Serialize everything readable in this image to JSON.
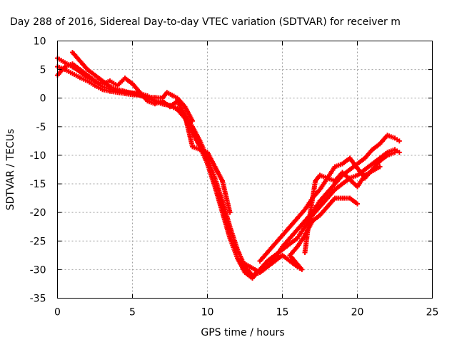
{
  "chart_data": {
    "type": "scatter",
    "title": "Day 288 of 2016, Sidereal Day-to-day VTEC variation (SDTVAR) for receiver m",
    "xlabel": "GPS time / hours",
    "ylabel": "SDTVAR / TECUs",
    "xlim": [
      0,
      25
    ],
    "ylim": [
      -35,
      10
    ],
    "xticks": [
      "0",
      "5",
      "10",
      "15",
      "20",
      "25"
    ],
    "yticks": [
      "10",
      "5",
      "0",
      "-5",
      "-10",
      "-15",
      "-20",
      "-25",
      "-30",
      "-35"
    ],
    "grid": true,
    "series_color": "#ff0000",
    "series": [
      {
        "points": [
          [
            0.0,
            7.0
          ],
          [
            0.5,
            6.2
          ],
          [
            1.0,
            5.5
          ],
          [
            1.5,
            4.6
          ],
          [
            2.0,
            3.6
          ],
          [
            2.5,
            2.8
          ],
          [
            3.0,
            2.0
          ],
          [
            3.5,
            1.6
          ],
          [
            4.0,
            1.2
          ],
          [
            4.5,
            1.0
          ],
          [
            5.0,
            0.9
          ],
          [
            5.5,
            0.8
          ],
          [
            6.0,
            0.4
          ],
          [
            6.5,
            -0.4
          ],
          [
            7.0,
            -1.0
          ],
          [
            7.5,
            -1.3
          ],
          [
            8.0,
            -1.8
          ],
          [
            8.5,
            -3.0
          ],
          [
            9.0,
            -5.0
          ],
          [
            9.5,
            -7.5
          ],
          [
            10.0,
            -10.5
          ],
          [
            10.5,
            -14.0
          ],
          [
            11.0,
            -18.0
          ],
          [
            11.5,
            -22.5
          ],
          [
            12.0,
            -26.5
          ],
          [
            12.5,
            -29.5
          ],
          [
            13.0,
            -31.0
          ],
          [
            13.5,
            -30.5
          ],
          [
            14.0,
            -29.5
          ],
          [
            14.5,
            -28.0
          ],
          [
            15.0,
            -26.0
          ],
          [
            15.5,
            -24.5
          ],
          [
            16.0,
            -23.0
          ],
          [
            16.5,
            -21.5
          ],
          [
            17.0,
            -20.0
          ],
          [
            17.5,
            -18.0
          ],
          [
            18.0,
            -16.5
          ],
          [
            18.5,
            -15.0
          ],
          [
            19.0,
            -13.5
          ],
          [
            19.5,
            -12.5
          ],
          [
            20.0,
            -11.5
          ],
          [
            20.5,
            -10.5
          ],
          [
            21.0,
            -9.0
          ],
          [
            21.5,
            -8.0
          ],
          [
            22.0,
            -6.5
          ],
          [
            22.5,
            -7.0
          ],
          [
            22.8,
            -7.5
          ]
        ]
      },
      {
        "points": [
          [
            0.0,
            5.5
          ],
          [
            0.5,
            5.0
          ],
          [
            1.0,
            4.3
          ],
          [
            1.5,
            3.6
          ],
          [
            2.0,
            3.0
          ],
          [
            2.5,
            2.2
          ],
          [
            3.0,
            1.5
          ],
          [
            3.5,
            1.2
          ],
          [
            4.0,
            1.0
          ],
          [
            4.5,
            0.8
          ],
          [
            5.0,
            0.6
          ],
          [
            5.5,
            0.5
          ],
          [
            6.0,
            0.0
          ],
          [
            6.5,
            -0.6
          ],
          [
            7.0,
            -1.0
          ],
          [
            7.5,
            -1.3
          ],
          [
            8.0,
            -2.0
          ],
          [
            8.5,
            -3.5
          ],
          [
            9.0,
            -6.0
          ],
          [
            9.5,
            -8.5
          ],
          [
            10.0,
            -11.5
          ],
          [
            10.5,
            -15.5
          ],
          [
            11.0,
            -20.0
          ],
          [
            11.5,
            -24.5
          ],
          [
            12.0,
            -28.0
          ],
          [
            12.5,
            -30.5
          ],
          [
            13.0,
            -31.5
          ],
          [
            13.5,
            -30.0
          ],
          [
            14.0,
            -28.5
          ],
          [
            14.5,
            -27.5
          ],
          [
            15.0,
            -26.5
          ],
          [
            15.5,
            -25.5
          ],
          [
            16.0,
            -24.5
          ],
          [
            16.5,
            -22.5
          ],
          [
            17.0,
            -20.5
          ],
          [
            17.5,
            -19.0
          ],
          [
            18.0,
            -17.5
          ],
          [
            18.5,
            -16.0
          ],
          [
            19.0,
            -15.0
          ],
          [
            19.5,
            -14.0
          ],
          [
            20.0,
            -13.5
          ],
          [
            20.5,
            -12.5
          ],
          [
            21.0,
            -11.5
          ],
          [
            21.5,
            -10.5
          ],
          [
            22.0,
            -9.5
          ],
          [
            22.5,
            -9.0
          ],
          [
            22.8,
            -9.5
          ]
        ]
      },
      {
        "points": [
          [
            0.0,
            4.0
          ],
          [
            0.5,
            5.5
          ],
          [
            1.0,
            6.0
          ],
          [
            1.5,
            5.0
          ],
          [
            2.0,
            4.0
          ],
          [
            2.5,
            3.0
          ],
          [
            3.0,
            2.5
          ],
          [
            3.5,
            3.0
          ],
          [
            4.0,
            2.2
          ],
          [
            4.5,
            3.5
          ],
          [
            5.0,
            2.5
          ],
          [
            5.5,
            1.0
          ],
          [
            6.0,
            -0.5
          ],
          [
            6.5,
            -1.0
          ],
          [
            7.0,
            -0.5
          ],
          [
            7.5,
            -1.5
          ],
          [
            8.0,
            -0.5
          ],
          [
            8.5,
            -3.0
          ],
          [
            9.0,
            -8.5
          ],
          [
            9.5,
            -9.0
          ],
          [
            10.0,
            -9.5
          ],
          [
            11.0,
            -14.5
          ],
          [
            11.5,
            -20.0
          ],
          [
            12.5,
            -29.0
          ],
          [
            13.5,
            -30.5
          ],
          [
            14.5,
            -28.5
          ],
          [
            15.0,
            -27.5
          ],
          [
            15.5,
            -28.5
          ],
          [
            16.0,
            -29.5
          ],
          [
            16.3,
            -30.0
          ],
          [
            15.5,
            -27.5
          ],
          [
            16.0,
            -26.0
          ],
          [
            16.5,
            -24.0
          ],
          [
            17.0,
            -21.5
          ],
          [
            17.5,
            -20.5
          ],
          [
            18.0,
            -19.0
          ],
          [
            18.5,
            -17.5
          ],
          [
            19.0,
            -17.5
          ],
          [
            19.5,
            -17.5
          ],
          [
            20.0,
            -18.5
          ]
        ]
      },
      {
        "points": [
          [
            1.0,
            8.0
          ],
          [
            1.5,
            6.5
          ],
          [
            2.0,
            5.0
          ],
          [
            2.5,
            4.0
          ],
          [
            3.0,
            3.0
          ],
          [
            3.5,
            2.0
          ],
          [
            4.0,
            1.5
          ],
          [
            6.0,
            0.2
          ],
          [
            7.0,
            0.0
          ],
          [
            7.3,
            1.0
          ],
          [
            8.0,
            0.0
          ],
          [
            8.5,
            -1.5
          ],
          [
            9.0,
            -4.0
          ],
          [
            13.5,
            -28.5
          ],
          [
            14.0,
            -27.0
          ],
          [
            14.5,
            -25.5
          ],
          [
            15.0,
            -24.0
          ],
          [
            15.5,
            -22.5
          ],
          [
            16.0,
            -21.0
          ],
          [
            16.5,
            -19.5
          ],
          [
            17.0,
            -17.5
          ],
          [
            17.5,
            -16.0
          ],
          [
            18.0,
            -14.0
          ],
          [
            18.5,
            -12.0
          ],
          [
            19.0,
            -11.5
          ],
          [
            19.5,
            -10.5
          ],
          [
            20.5,
            -14.0
          ],
          [
            21.0,
            -12.5
          ],
          [
            21.5,
            -11.0
          ],
          [
            22.0,
            -10.0
          ],
          [
            22.5,
            -9.5
          ],
          [
            16.5,
            -27.0
          ],
          [
            16.8,
            -21.0
          ],
          [
            17.2,
            -14.5
          ],
          [
            17.5,
            -13.5
          ],
          [
            18.5,
            -14.5
          ],
          [
            19.0,
            -13.0
          ],
          [
            20.0,
            -15.5
          ],
          [
            20.5,
            -13.5
          ],
          [
            21.5,
            -12.0
          ]
        ]
      }
    ]
  }
}
